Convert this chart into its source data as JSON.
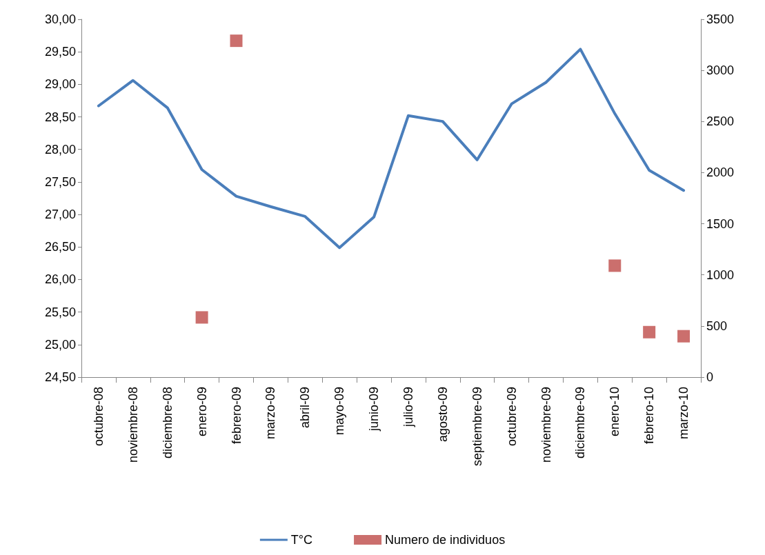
{
  "chart_data": {
    "type": "line",
    "categories": [
      "octubre-08",
      "noviembre-08",
      "diciembre-08",
      "enero-09",
      "febrero-09",
      "marzo-09",
      "abril-09",
      "mayo-09",
      "junio-09",
      "julio-09",
      "agosto-09",
      "septiembre-09",
      "octubre-09",
      "noviembre-09",
      "diciembre-09",
      "enero-10",
      "febrero-10",
      "marzo-10"
    ],
    "series": [
      {
        "name": "T°C",
        "color": "#4a7ebb",
        "marker": "none",
        "values": [
          28.67,
          29.06,
          28.64,
          27.69,
          27.28,
          27.12,
          26.97,
          26.49,
          26.96,
          28.52,
          28.43,
          27.84,
          28.7,
          29.03,
          29.54,
          28.55,
          27.68,
          27.37
        ]
      },
      {
        "name": "Numero de individuos",
        "type": "scatter",
        "axis": "y2",
        "color": "#be4b48",
        "marker": "square",
        "values": [
          null,
          null,
          null,
          584,
          3290,
          null,
          null,
          null,
          null,
          null,
          null,
          null,
          null,
          null,
          null,
          1090,
          440,
          400
        ]
      }
    ],
    "ylim": [
      24.5,
      30
    ],
    "yticks": [
      {
        "value": 24.5,
        "label": "24,50"
      },
      {
        "value": 25,
        "label": "25,00"
      },
      {
        "value": 25.5,
        "label": "25,50"
      },
      {
        "value": 26,
        "label": "26,00"
      },
      {
        "value": 26.5,
        "label": "26,50"
      },
      {
        "value": 27,
        "label": "27,00"
      },
      {
        "value": 27.5,
        "label": "27,50"
      },
      {
        "value": 28,
        "label": "28,00"
      },
      {
        "value": 28.5,
        "label": "28,50"
      },
      {
        "value": 29,
        "label": "29,00"
      },
      {
        "value": 29.5,
        "label": "29,50"
      },
      {
        "value": 30,
        "label": "30,00"
      }
    ],
    "y2lim": [
      0,
      3500
    ],
    "y2ticks": [
      0,
      500,
      1000,
      1500,
      2000,
      2500,
      3000,
      3500
    ],
    "grid": false,
    "legend": "bottom"
  }
}
